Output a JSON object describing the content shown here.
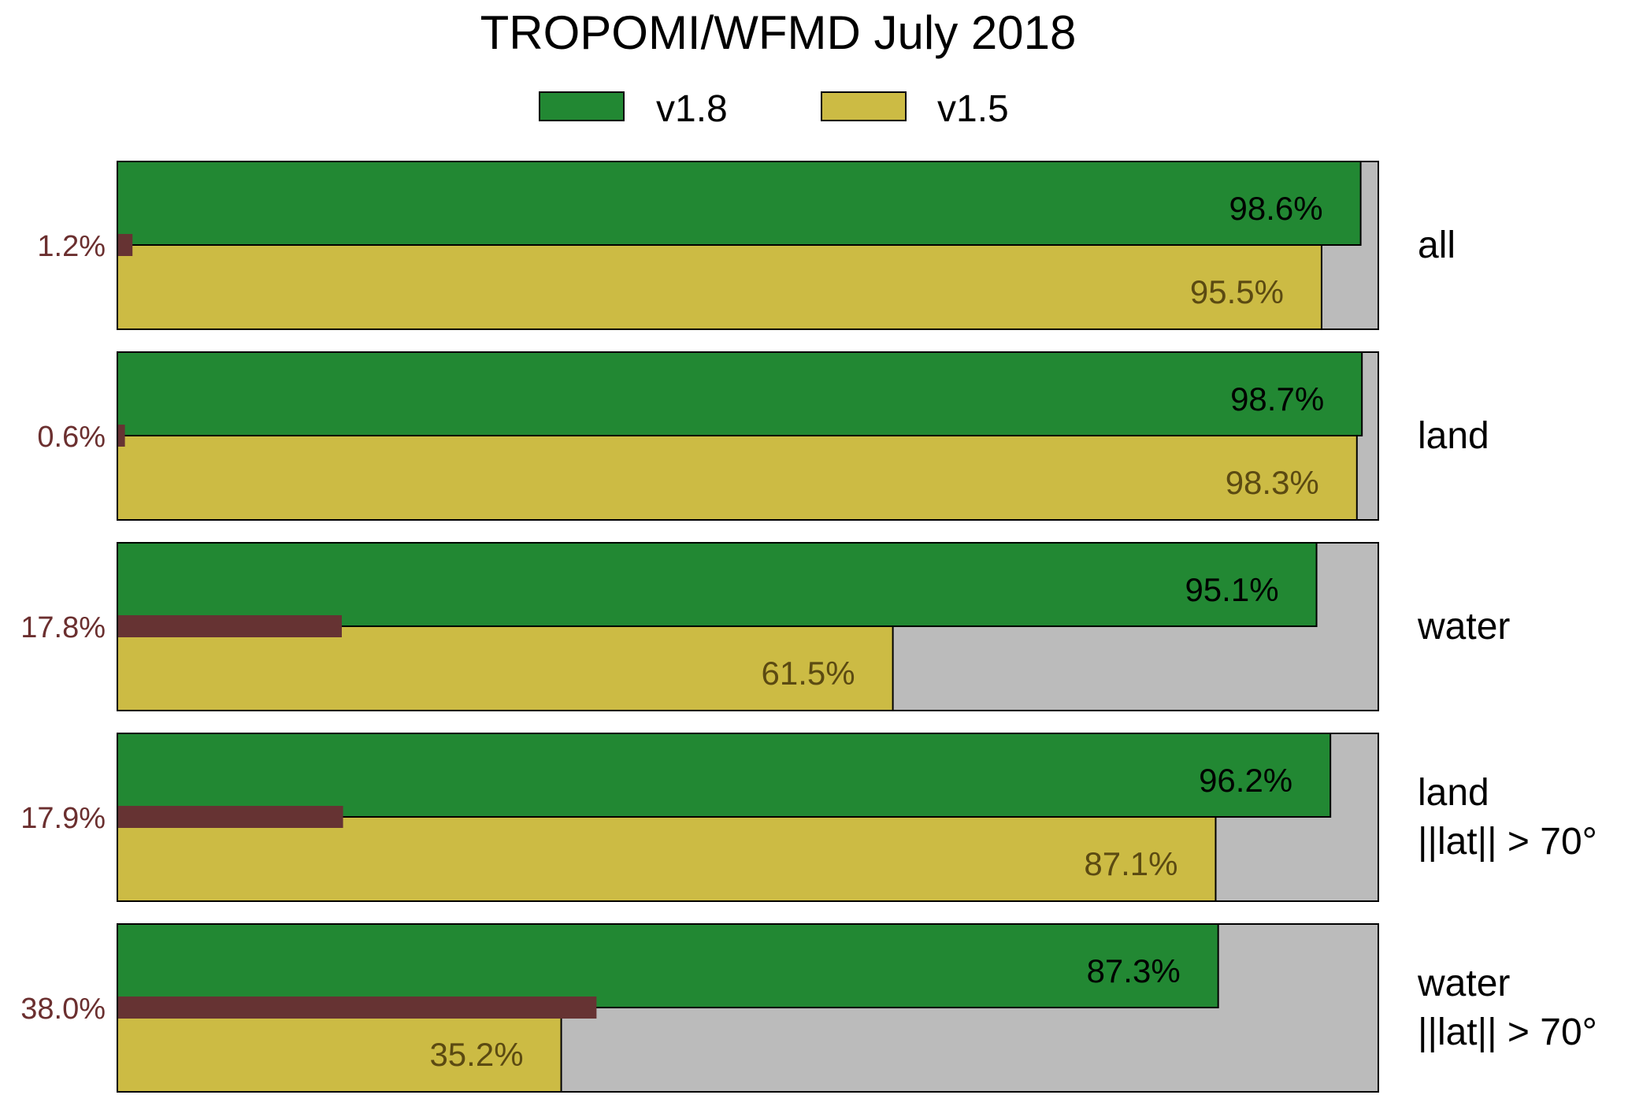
{
  "chart_data": {
    "type": "bar",
    "title": "TROPOMI/WFMD July 2018",
    "orientation": "horizontal",
    "xlim": [
      0,
      100
    ],
    "unit": "%",
    "legend": [
      {
        "name": "v1.8",
        "color": "#228833"
      },
      {
        "name": "v1.5",
        "color": "#ccbb44"
      }
    ],
    "colors": {
      "v1_8": "#228833",
      "v1_5": "#ccbb44",
      "difference": "#663333",
      "background": "#bbbbbb"
    },
    "categories": [
      {
        "lines": [
          "all"
        ]
      },
      {
        "lines": [
          "land"
        ]
      },
      {
        "lines": [
          "water"
        ]
      },
      {
        "lines": [
          "land",
          "||lat|| > 70°"
        ]
      },
      {
        "lines": [
          "water",
          "||lat|| > 70°"
        ]
      }
    ],
    "series": [
      {
        "name": "v1.8",
        "values": [
          98.6,
          98.7,
          95.1,
          96.2,
          87.3
        ],
        "labels": [
          "98.6%",
          "98.7%",
          "95.1%",
          "96.2%",
          "87.3%"
        ]
      },
      {
        "name": "v1.5",
        "values": [
          95.5,
          98.3,
          61.5,
          87.1,
          35.2
        ],
        "labels": [
          "95.5%",
          "98.3%",
          "61.5%",
          "87.1%",
          "35.2%"
        ]
      }
    ],
    "difference": {
      "values": [
        1.2,
        0.6,
        17.8,
        17.9,
        38.0
      ],
      "labels": [
        "1.2%",
        "0.6%",
        "17.8%",
        "17.9%",
        "38.0%"
      ]
    }
  }
}
